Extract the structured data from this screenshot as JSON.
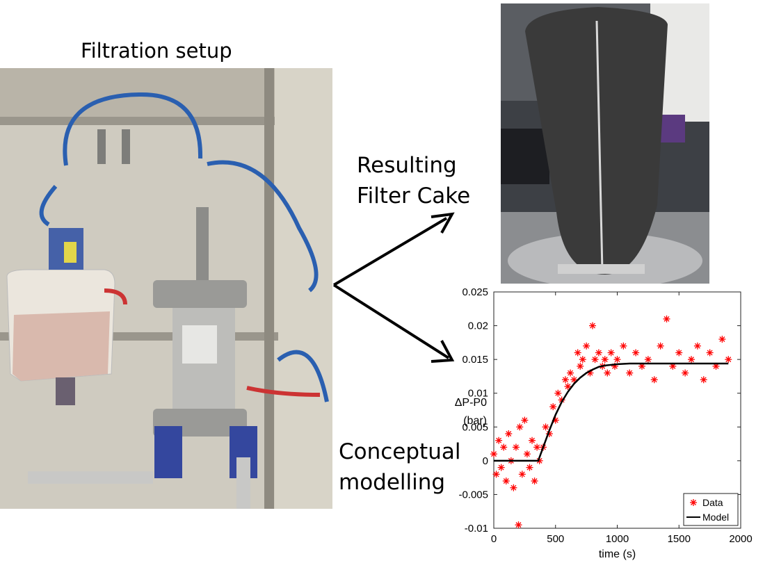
{
  "labels": {
    "setup_title": "Filtration setup",
    "cake_line1": "Resulting",
    "cake_line2": "Filter Cake",
    "model_line1": "Conceptual",
    "model_line2": "modelling"
  },
  "colors": {
    "data_marker": "#ff0000",
    "model_line": "#000000",
    "hose_blue": "#2a5fb0",
    "steel": "#a9a9a6",
    "cake_dark": "#3a3a3a"
  },
  "chart_data": {
    "type": "scatter",
    "xlabel": "time (s)",
    "ylabel_line1": "ΔP-P0",
    "ylabel_line2": "(bar)",
    "xlim": [
      0,
      2000
    ],
    "ylim": [
      -0.01,
      0.025
    ],
    "x_ticks": [
      "0",
      "500",
      "1000",
      "1500",
      "2000"
    ],
    "y_ticks": [
      "-0.01",
      "-0.005",
      "0",
      "0.005",
      "0.01",
      "0.015",
      "0.02",
      "0.025"
    ],
    "legend": {
      "placement": "bottom-right",
      "entries": [
        "Data",
        "Model"
      ]
    },
    "series": [
      {
        "name": "Data",
        "marker": "asterisk",
        "points": [
          [
            0,
            0.001
          ],
          [
            20,
            -0.002
          ],
          [
            40,
            0.003
          ],
          [
            60,
            -0.001
          ],
          [
            80,
            0.002
          ],
          [
            100,
            -0.003
          ],
          [
            120,
            0.004
          ],
          [
            140,
            0.0
          ],
          [
            160,
            -0.004
          ],
          [
            180,
            0.002
          ],
          [
            200,
            -0.0095
          ],
          [
            210,
            0.005
          ],
          [
            230,
            -0.002
          ],
          [
            250,
            0.006
          ],
          [
            270,
            0.001
          ],
          [
            290,
            -0.001
          ],
          [
            310,
            0.003
          ],
          [
            330,
            -0.003
          ],
          [
            350,
            0.002
          ],
          [
            370,
            0.0
          ],
          [
            400,
            0.002
          ],
          [
            420,
            0.005
          ],
          [
            450,
            0.004
          ],
          [
            480,
            0.008
          ],
          [
            500,
            0.006
          ],
          [
            520,
            0.01
          ],
          [
            550,
            0.009
          ],
          [
            580,
            0.012
          ],
          [
            600,
            0.011
          ],
          [
            620,
            0.013
          ],
          [
            650,
            0.012
          ],
          [
            680,
            0.016
          ],
          [
            700,
            0.014
          ],
          [
            720,
            0.015
          ],
          [
            750,
            0.017
          ],
          [
            780,
            0.013
          ],
          [
            800,
            0.02
          ],
          [
            820,
            0.015
          ],
          [
            850,
            0.016
          ],
          [
            880,
            0.014
          ],
          [
            900,
            0.015
          ],
          [
            920,
            0.013
          ],
          [
            950,
            0.016
          ],
          [
            980,
            0.014
          ],
          [
            1000,
            0.015
          ],
          [
            1050,
            0.017
          ],
          [
            1100,
            0.013
          ],
          [
            1150,
            0.016
          ],
          [
            1200,
            0.014
          ],
          [
            1250,
            0.015
          ],
          [
            1300,
            0.012
          ],
          [
            1350,
            0.017
          ],
          [
            1400,
            0.021
          ],
          [
            1450,
            0.014
          ],
          [
            1500,
            0.016
          ],
          [
            1550,
            0.013
          ],
          [
            1600,
            0.015
          ],
          [
            1650,
            0.017
          ],
          [
            1700,
            0.012
          ],
          [
            1750,
            0.016
          ],
          [
            1800,
            0.014
          ],
          [
            1850,
            0.018
          ],
          [
            1900,
            0.015
          ]
        ]
      },
      {
        "name": "Model",
        "marker": "line",
        "points": [
          [
            0,
            0
          ],
          [
            360,
            0
          ],
          [
            400,
            0.002
          ],
          [
            450,
            0.0045
          ],
          [
            500,
            0.0068
          ],
          [
            550,
            0.0087
          ],
          [
            600,
            0.0102
          ],
          [
            650,
            0.0114
          ],
          [
            700,
            0.0123
          ],
          [
            750,
            0.013
          ],
          [
            800,
            0.0135
          ],
          [
            850,
            0.0139
          ],
          [
            900,
            0.0141
          ],
          [
            1000,
            0.0143
          ],
          [
            1100,
            0.0144
          ],
          [
            1300,
            0.0144
          ],
          [
            1500,
            0.0144
          ],
          [
            1700,
            0.0144
          ],
          [
            1900,
            0.0144
          ]
        ]
      }
    ]
  }
}
